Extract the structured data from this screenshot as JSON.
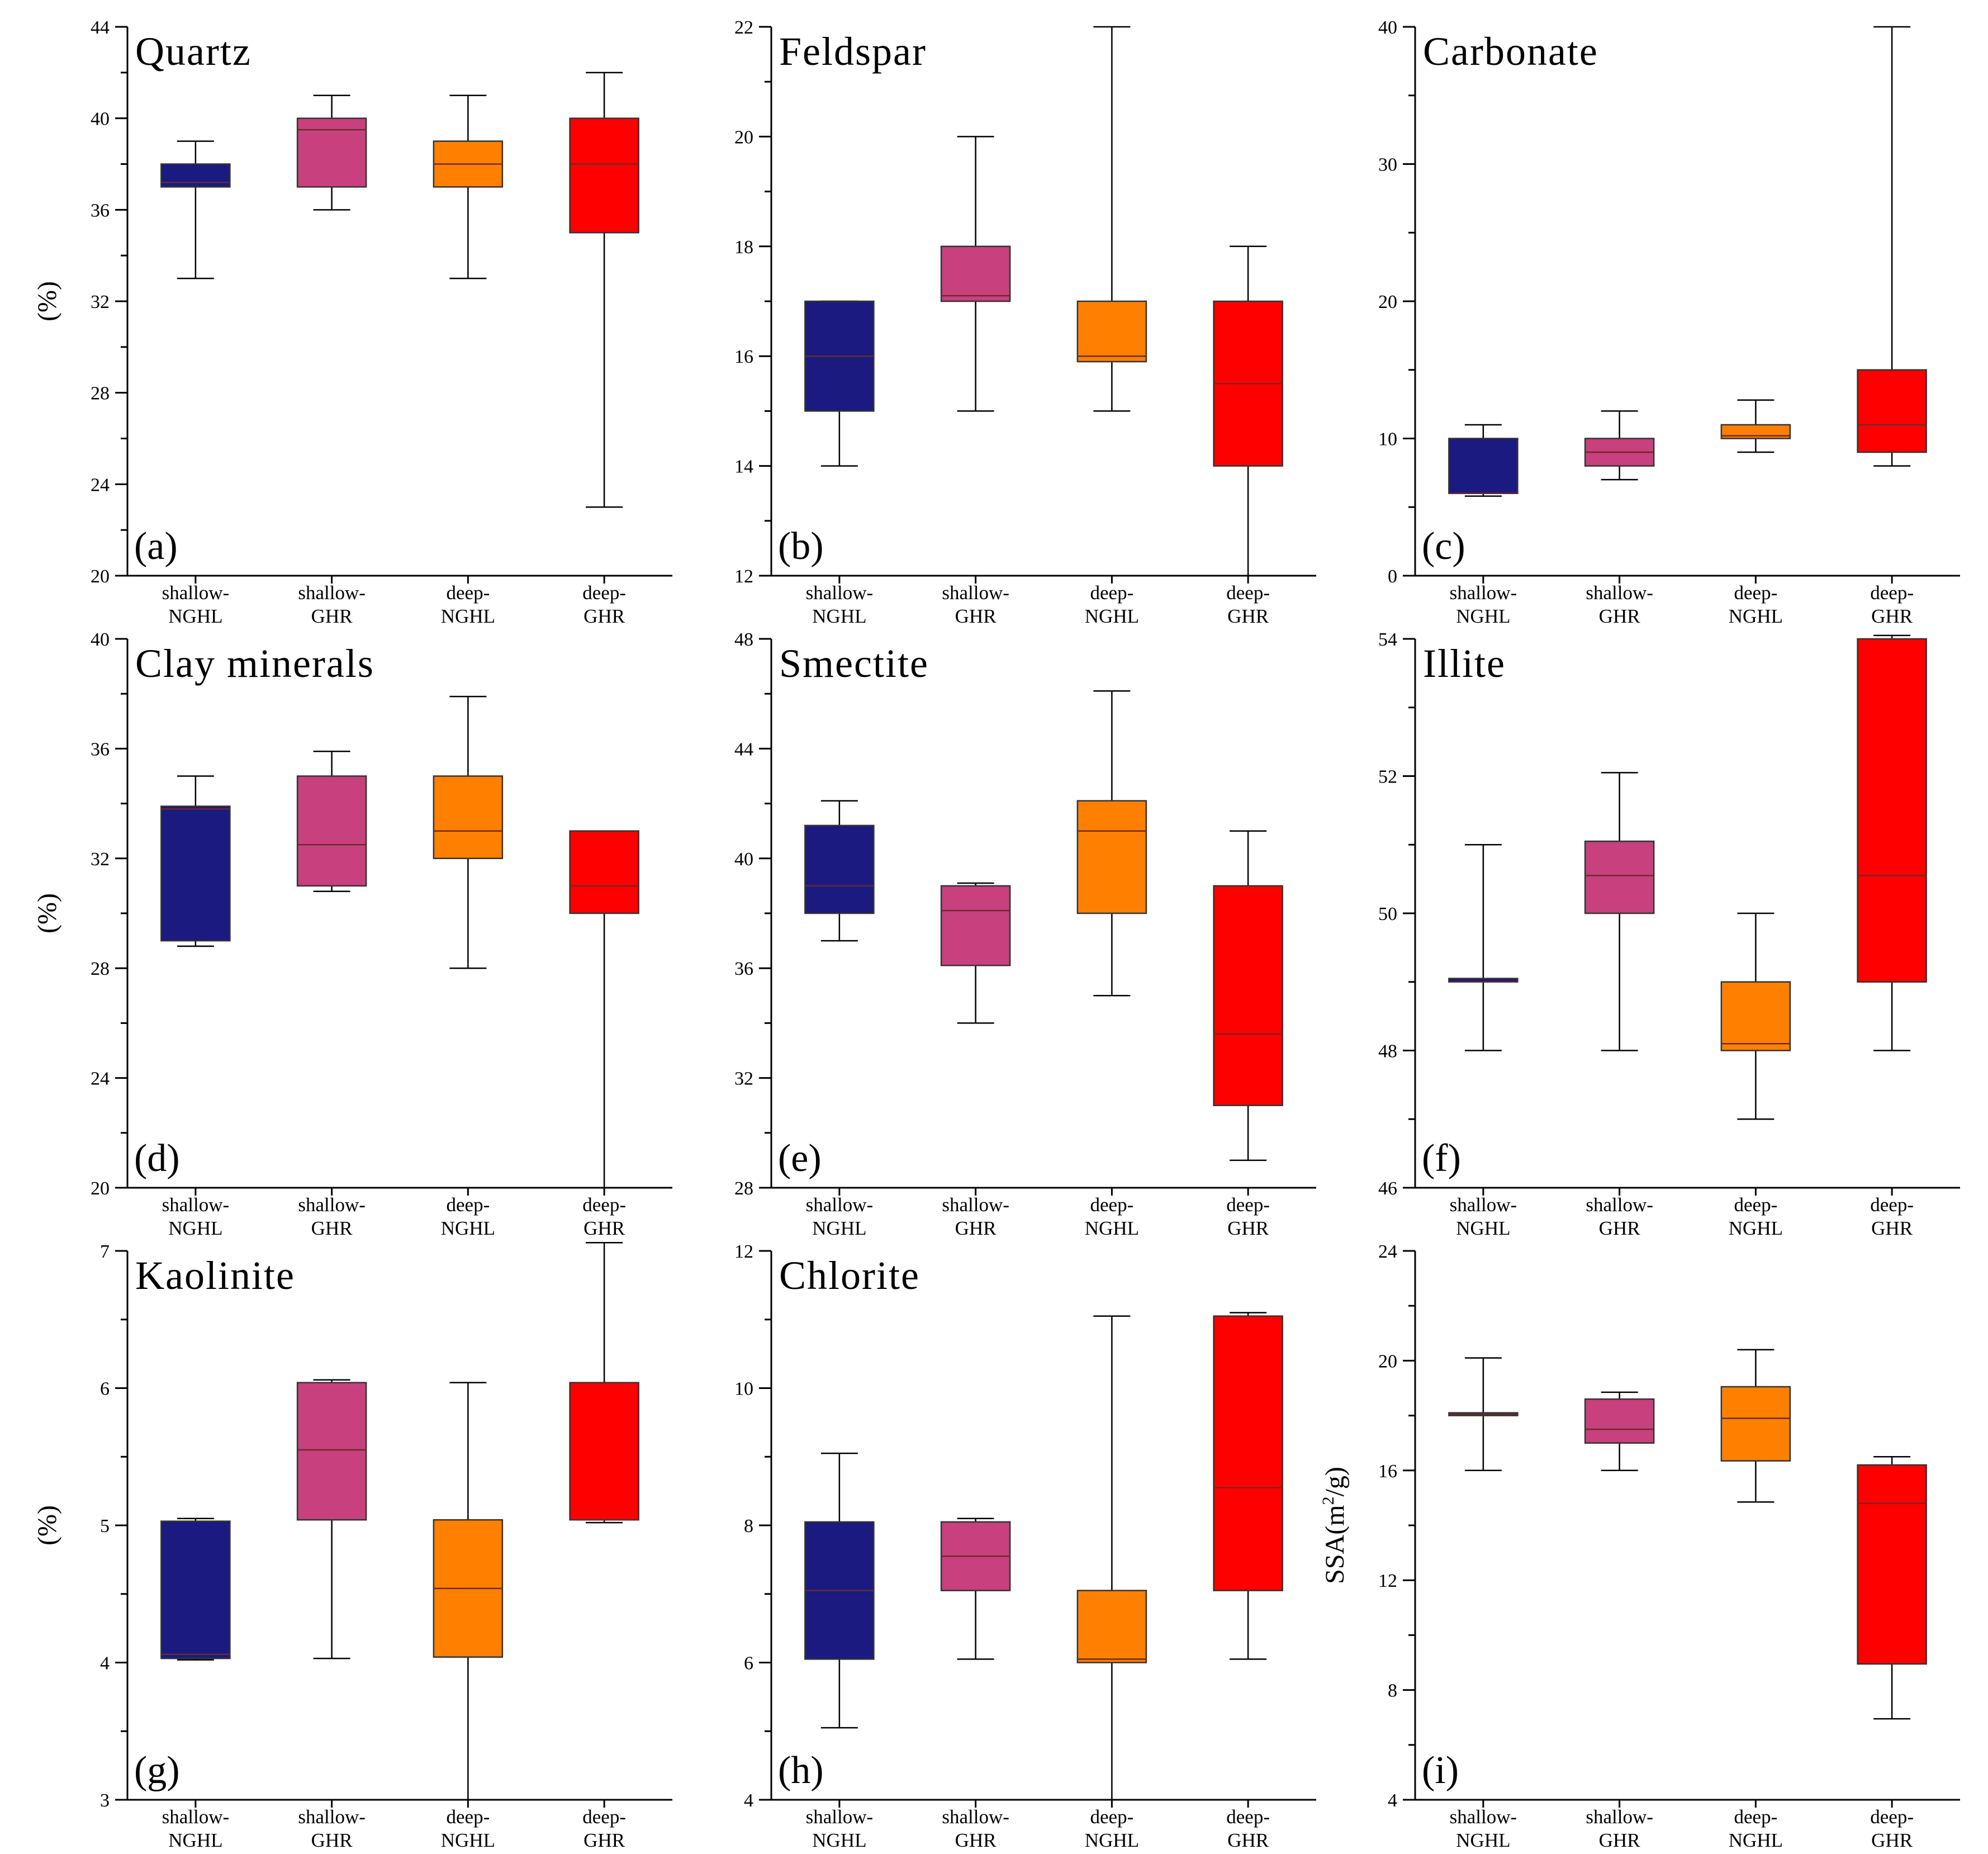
{
  "colors": {
    "shallow-NGHL": "#1a1a80",
    "shallow-GHR": "#c8407e",
    "deep-NGHL": "#ff8000",
    "deep-GHR": "#ff0000"
  },
  "categories": [
    [
      "shallow-",
      "NGHL"
    ],
    [
      "shallow-",
      "GHR"
    ],
    [
      "deep-",
      "NGHL"
    ],
    [
      "deep-",
      "GHR"
    ]
  ],
  "chart_data": [
    {
      "type": "box",
      "id": "a",
      "title": "Quartz",
      "letter": "(a)",
      "ylabel": "(%)",
      "ylim": [
        20,
        44
      ],
      "ticks": [
        "20",
        "24",
        "28",
        "32",
        "36",
        "40",
        "44"
      ],
      "boxes": [
        {
          "min": 33.0,
          "q1": 37.0,
          "median": 37.2,
          "q3": 38.0,
          "max": 39.0
        },
        {
          "min": 36.0,
          "q1": 37.0,
          "median": 39.5,
          "q3": 40.0,
          "max": 41.0
        },
        {
          "min": 33.0,
          "q1": 37.0,
          "median": 38.0,
          "q3": 39.0,
          "max": 41.0
        },
        {
          "min": 23.0,
          "q1": 35.0,
          "median": 38.0,
          "q3": 40.0,
          "max": 42.0
        }
      ]
    },
    {
      "type": "box",
      "id": "b",
      "title": "Feldspar",
      "letter": "(b)",
      "ylabel": "",
      "ylim": [
        12,
        22
      ],
      "ticks": [
        "12",
        "14",
        "16",
        "18",
        "20",
        "22"
      ],
      "boxes": [
        {
          "min": 14.0,
          "q1": 15.0,
          "median": 16.0,
          "q3": 17.0,
          "max": 17.0
        },
        {
          "min": 15.0,
          "q1": 17.0,
          "median": 17.1,
          "q3": 18.0,
          "max": 20.0
        },
        {
          "min": 15.0,
          "q1": 15.9,
          "median": 16.0,
          "q3": 17.0,
          "max": 22.0
        },
        {
          "min": 12.0,
          "q1": 14.0,
          "median": 15.5,
          "q3": 17.0,
          "max": 18.0
        }
      ]
    },
    {
      "type": "box",
      "id": "c",
      "title": "Carbonate",
      "letter": "(c)",
      "ylabel": "",
      "ylim": [
        0,
        40
      ],
      "ticks": [
        "0",
        "10",
        "20",
        "30",
        "40"
      ],
      "boxes": [
        {
          "min": 5.8,
          "q1": 6.0,
          "median": 6.0,
          "q3": 10.0,
          "max": 11.0
        },
        {
          "min": 7.0,
          "q1": 8.0,
          "median": 9.0,
          "q3": 10.0,
          "max": 12.0
        },
        {
          "min": 9.0,
          "q1": 10.0,
          "median": 10.2,
          "q3": 11.0,
          "max": 12.8
        },
        {
          "min": 8.0,
          "q1": 9.0,
          "median": 11.0,
          "q3": 15.0,
          "max": 40.0
        }
      ]
    },
    {
      "type": "box",
      "id": "d",
      "title": "Clay minerals",
      "letter": "(d)",
      "ylabel": "(%)",
      "ylim": [
        20,
        40
      ],
      "ticks": [
        "20",
        "24",
        "28",
        "32",
        "36",
        "40"
      ],
      "boxes": [
        {
          "min": 28.8,
          "q1": 29.0,
          "median": 33.8,
          "q3": 33.9,
          "max": 35.0
        },
        {
          "min": 30.8,
          "q1": 31.0,
          "median": 32.5,
          "q3": 35.0,
          "max": 35.9
        },
        {
          "min": 28.0,
          "q1": 32.0,
          "median": 33.0,
          "q3": 35.0,
          "max": 37.9
        },
        {
          "min": 20.0,
          "q1": 30.0,
          "median": 31.0,
          "q3": 33.0,
          "max": 33.0
        }
      ]
    },
    {
      "type": "box",
      "id": "e",
      "title": "Smectite",
      "letter": "(e)",
      "ylabel": "",
      "ylim": [
        28,
        48
      ],
      "ticks": [
        "28",
        "32",
        "36",
        "40",
        "44",
        "48"
      ],
      "boxes": [
        {
          "min": 37.0,
          "q1": 38.0,
          "median": 39.0,
          "q3": 41.2,
          "max": 42.1
        },
        {
          "min": 34.0,
          "q1": 36.1,
          "median": 38.1,
          "q3": 39.0,
          "max": 39.1
        },
        {
          "min": 35.0,
          "q1": 38.0,
          "median": 41.0,
          "q3": 42.1,
          "max": 46.1
        },
        {
          "min": 29.0,
          "q1": 31.0,
          "median": 33.6,
          "q3": 39.0,
          "max": 41.0
        }
      ]
    },
    {
      "type": "box",
      "id": "f",
      "title": "Illite",
      "letter": "(f)",
      "ylabel": "",
      "ylim": [
        46,
        54
      ],
      "ticks": [
        "46",
        "48",
        "50",
        "52",
        "54"
      ],
      "boxes": [
        {
          "min": 48.0,
          "q1": 49.0,
          "median": 49.0,
          "q3": 49.05,
          "max": 51.0
        },
        {
          "min": 48.0,
          "q1": 50.0,
          "median": 50.55,
          "q3": 51.05,
          "max": 52.05
        },
        {
          "min": 47.0,
          "q1": 48.0,
          "median": 48.1,
          "q3": 49.0,
          "max": 50.0
        },
        {
          "min": 48.0,
          "q1": 49.0,
          "median": 50.55,
          "q3": 54.0,
          "max": 54.05
        }
      ]
    },
    {
      "type": "box",
      "id": "g",
      "title": "Kaolinite",
      "letter": "(g)",
      "ylabel": "(%)",
      "ylim": [
        3,
        7
      ],
      "ticks": [
        "3",
        "4",
        "5",
        "6",
        "7"
      ],
      "boxes": [
        {
          "min": 4.02,
          "q1": 4.03,
          "median": 4.06,
          "q3": 5.03,
          "max": 5.05
        },
        {
          "min": 4.03,
          "q1": 5.04,
          "median": 5.55,
          "q3": 6.04,
          "max": 6.06
        },
        {
          "min": 3.0,
          "q1": 4.04,
          "median": 4.54,
          "q3": 5.04,
          "max": 6.04
        },
        {
          "min": 5.02,
          "q1": 5.04,
          "median": 5.04,
          "q3": 6.04,
          "max": 7.06
        }
      ]
    },
    {
      "type": "box",
      "id": "h",
      "title": "Chlorite",
      "letter": "(h)",
      "ylabel": "",
      "ylim": [
        4,
        12
      ],
      "ticks": [
        "4",
        "6",
        "8",
        "10",
        "12"
      ],
      "boxes": [
        {
          "min": 5.05,
          "q1": 6.05,
          "median": 7.05,
          "q3": 8.05,
          "max": 9.05
        },
        {
          "min": 6.05,
          "q1": 7.05,
          "median": 7.55,
          "q3": 8.05,
          "max": 8.1
        },
        {
          "min": 4.0,
          "q1": 6.0,
          "median": 6.05,
          "q3": 7.05,
          "max": 11.05
        },
        {
          "min": 6.05,
          "q1": 7.05,
          "median": 8.55,
          "q3": 11.05,
          "max": 11.1
        }
      ]
    },
    {
      "type": "box",
      "id": "i",
      "title": "",
      "letter": "(i)",
      "ylabel": "SSA(m2/g)",
      "ylabel_parts": {
        "pre": "SSA(m",
        "sup": "2",
        "post": "/g)"
      },
      "ylim": [
        4,
        24
      ],
      "ticks": [
        "4",
        "8",
        "12",
        "16",
        "20",
        "24"
      ],
      "boxes": [
        {
          "min": 16.0,
          "q1": 18.0,
          "median": 18.05,
          "q3": 18.1,
          "max": 20.1
        },
        {
          "min": 16.0,
          "q1": 17.0,
          "median": 17.5,
          "q3": 18.6,
          "max": 18.85
        },
        {
          "min": 14.85,
          "q1": 16.35,
          "median": 17.9,
          "q3": 19.05,
          "max": 20.4
        },
        {
          "min": 6.95,
          "q1": 8.95,
          "median": 14.8,
          "q3": 16.2,
          "max": 16.5
        }
      ]
    }
  ]
}
